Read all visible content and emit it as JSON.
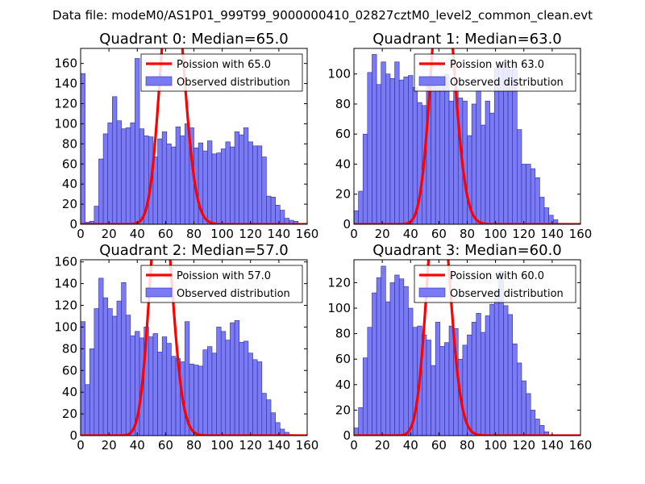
{
  "suptitle": "Data file: modeM0/AS1P01_999T99_9000000410_02827cztM0_level2_common_clean.evt",
  "colors": {
    "bar_fill": "#7a7af5",
    "bar_edge": "#2d2d9a",
    "poisson": "#ff0000",
    "axes": "#000000"
  },
  "chart_data": [
    {
      "type": "bar",
      "title": "Quadrant 0: Median=65.0",
      "xlabel": "",
      "ylabel": "",
      "xlim": [
        0,
        160
      ],
      "ylim": [
        0,
        175
      ],
      "xticks": [
        0,
        20,
        40,
        60,
        80,
        100,
        120,
        140,
        160
      ],
      "yticks": [
        0,
        20,
        40,
        60,
        80,
        100,
        120,
        140,
        160
      ],
      "bin_width": 3.2,
      "bins_start": [
        0,
        3.2,
        6.4,
        9.6,
        12.8,
        16,
        19.2,
        22.4,
        25.6,
        28.8,
        32,
        35.2,
        38.4,
        41.6,
        44.8,
        48,
        51.2,
        54.4,
        57.6,
        60.8,
        64,
        67.2,
        70.4,
        73.6,
        76.8,
        80,
        83.2,
        86.4,
        89.6,
        92.8,
        96,
        99.2,
        102.4,
        105.6,
        108.8,
        112,
        115.2,
        118.4,
        121.6,
        124.8,
        128,
        131.2,
        134.4,
        137.6,
        140.8,
        144,
        147.2,
        150.4,
        153.6,
        156.8
      ],
      "counts": [
        150,
        2,
        3,
        18,
        65,
        90,
        101,
        127,
        103,
        95,
        96,
        101,
        165,
        95,
        88,
        87,
        67,
        85,
        92,
        80,
        77,
        97,
        88,
        100,
        96,
        76,
        81,
        73,
        83,
        70,
        71,
        75,
        82,
        77,
        92,
        89,
        96,
        82,
        78,
        78,
        67,
        28,
        27,
        19,
        14,
        6,
        4,
        3,
        1,
        1
      ],
      "poisson_lambda": 65,
      "poisson_scale": 5300,
      "legend": [
        "Poission with 65.0",
        "Observed distribution"
      ],
      "legend_loc": "upper right"
    },
    {
      "type": "bar",
      "title": "Quadrant 1: Median=63.0",
      "xlabel": "",
      "ylabel": "",
      "xlim": [
        0,
        160
      ],
      "ylim": [
        0,
        117
      ],
      "xticks": [
        0,
        20,
        40,
        60,
        80,
        100,
        120,
        140,
        160
      ],
      "yticks": [
        0,
        20,
        40,
        60,
        80,
        100
      ],
      "bin_width": 3.2,
      "bins_start": [
        0,
        3.2,
        6.4,
        9.6,
        12.8,
        16,
        19.2,
        22.4,
        25.6,
        28.8,
        32,
        35.2,
        38.4,
        41.6,
        44.8,
        48,
        51.2,
        54.4,
        57.6,
        60.8,
        64,
        67.2,
        70.4,
        73.6,
        76.8,
        80,
        83.2,
        86.4,
        89.6,
        92.8,
        96,
        99.2,
        102.4,
        105.6,
        108.8,
        112,
        115.2,
        118.4,
        121.6,
        124.8,
        128,
        131.2,
        134.4,
        137.6,
        140.8,
        144,
        147.2,
        150.4,
        153.6,
        156.8
      ],
      "counts": [
        9,
        22,
        60,
        101,
        113,
        93,
        108,
        100,
        97,
        108,
        96,
        98,
        99,
        91,
        81,
        79,
        92,
        96,
        91,
        91,
        100,
        82,
        90,
        84,
        82,
        59,
        80,
        89,
        66,
        82,
        74,
        104,
        106,
        109,
        103,
        108,
        63,
        40,
        40,
        37,
        31,
        18,
        11,
        6,
        3,
        0,
        0,
        0,
        0,
        0
      ],
      "poisson_lambda": 63,
      "poisson_scale": 3500,
      "legend": [
        "Poission with 63.0",
        "Observed distribution"
      ],
      "legend_loc": "upper right"
    },
    {
      "type": "bar",
      "title": "Quadrant 2: Median=57.0",
      "xlabel": "",
      "ylabel": "",
      "xlim": [
        0,
        160
      ],
      "ylim": [
        0,
        162
      ],
      "xticks": [
        0,
        20,
        40,
        60,
        80,
        100,
        120,
        140,
        160
      ],
      "yticks": [
        0,
        20,
        40,
        60,
        80,
        100,
        120,
        140,
        160
      ],
      "bin_width": 3.2,
      "bins_start": [
        0,
        3.2,
        6.4,
        9.6,
        12.8,
        16,
        19.2,
        22.4,
        25.6,
        28.8,
        32,
        35.2,
        38.4,
        41.6,
        44.8,
        48,
        51.2,
        54.4,
        57.6,
        60.8,
        64,
        67.2,
        70.4,
        73.6,
        76.8,
        80,
        83.2,
        86.4,
        89.6,
        92.8,
        96,
        99.2,
        102.4,
        105.6,
        108.8,
        112,
        115.2,
        118.4,
        121.6,
        124.8,
        128,
        131.2,
        134.4,
        137.6,
        140.8,
        144,
        147.2,
        150.4,
        153.6,
        156.8
      ],
      "counts": [
        105,
        47,
        80,
        117,
        145,
        127,
        117,
        110,
        124,
        141,
        111,
        92,
        96,
        90,
        100,
        91,
        94,
        77,
        91,
        85,
        73,
        71,
        68,
        105,
        66,
        65,
        64,
        79,
        82,
        76,
        100,
        96,
        88,
        104,
        106,
        86,
        87,
        76,
        70,
        68,
        39,
        33,
        21,
        12,
        6,
        3,
        1,
        0,
        0,
        0
      ],
      "poisson_lambda": 57,
      "poisson_scale": 4500,
      "legend": [
        "Poission with 57.0",
        "Observed distribution"
      ],
      "legend_loc": "upper right"
    },
    {
      "type": "bar",
      "title": "Quadrant 3: Median=60.0",
      "xlabel": "",
      "ylabel": "",
      "xlim": [
        0,
        160
      ],
      "ylim": [
        0,
        138
      ],
      "xticks": [
        0,
        20,
        40,
        60,
        80,
        100,
        120,
        140,
        160
      ],
      "yticks": [
        0,
        20,
        40,
        60,
        80,
        100,
        120
      ],
      "bin_width": 3.2,
      "bins_start": [
        0,
        3.2,
        6.4,
        9.6,
        12.8,
        16,
        19.2,
        22.4,
        25.6,
        28.8,
        32,
        35.2,
        38.4,
        41.6,
        44.8,
        48,
        51.2,
        54.4,
        57.6,
        60.8,
        64,
        67.2,
        70.4,
        73.6,
        76.8,
        80,
        83.2,
        86.4,
        89.6,
        92.8,
        96,
        99.2,
        102.4,
        105.6,
        108.8,
        112,
        115.2,
        118.4,
        121.6,
        124.8,
        128,
        131.2,
        134.4,
        137.6,
        140.8,
        144,
        147.2,
        150.4,
        153.6,
        156.8
      ],
      "counts": [
        6,
        22,
        61,
        85,
        112,
        124,
        133,
        105,
        120,
        126,
        123,
        117,
        100,
        85,
        86,
        79,
        75,
        55,
        89,
        70,
        73,
        86,
        84,
        60,
        71,
        79,
        89,
        96,
        81,
        94,
        103,
        114,
        129,
        102,
        95,
        72,
        57,
        43,
        33,
        20,
        13,
        8,
        3,
        0,
        0,
        0,
        0,
        0,
        0,
        0
      ],
      "poisson_lambda": 60,
      "poisson_scale": 4000,
      "legend": [
        "Poission with 60.0",
        "Observed distribution"
      ],
      "legend_loc": "upper right"
    }
  ]
}
